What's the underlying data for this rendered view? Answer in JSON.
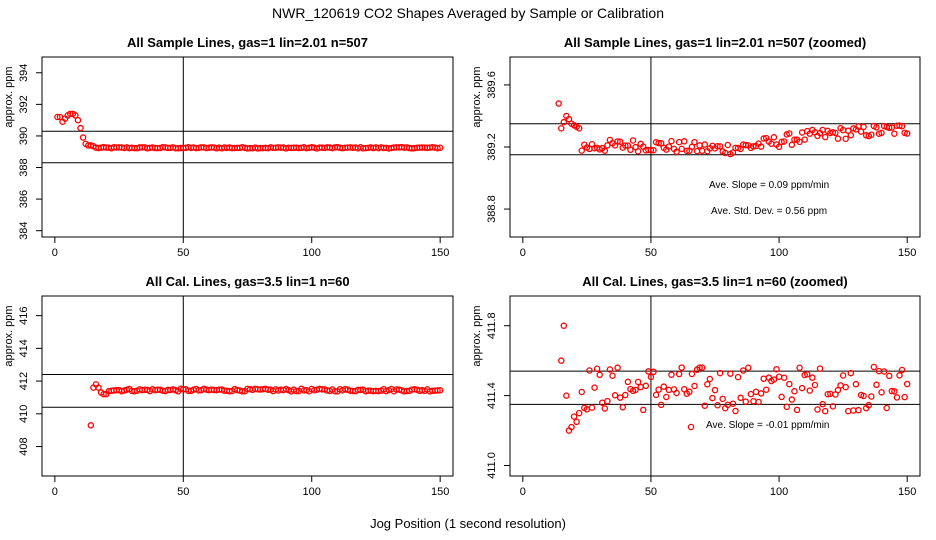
{
  "figure": {
    "title": "NWR_120619  CO2 Shapes Averaged by Sample or Calibration",
    "xlabel": "Jog Position (1 second resolution)"
  },
  "chart_data": [
    {
      "type": "scatter",
      "title": "All Sample Lines, gas=1 lin=2.01 n=507",
      "ylabel": "approx. ppm",
      "xlim": [
        -5,
        155
      ],
      "ylim": [
        383.6,
        395
      ],
      "xticks": [
        0,
        50,
        100,
        150
      ],
      "yticks": [
        384,
        386,
        388,
        390,
        392,
        394
      ],
      "vline_x": 50,
      "hlines_y": [
        388.3,
        390.3
      ],
      "color": "#ff0000",
      "annotations": [],
      "segments": [
        {
          "x": [
            1,
            2,
            3,
            4,
            5,
            6,
            7,
            8,
            9,
            10,
            11,
            12,
            13,
            14,
            15
          ],
          "y": [
            391.2,
            391.2,
            390.9,
            391.1,
            391.3,
            391.4,
            391.4,
            391.3,
            391.0,
            390.5,
            389.9,
            389.5,
            389.4,
            389.4,
            389.35
          ]
        },
        {
          "x_start": 16,
          "x_end": 150,
          "step": 1,
          "y_base": 389.25,
          "y_slope": 0.0,
          "jitter": 0.04
        }
      ]
    },
    {
      "type": "scatter",
      "title": "All Sample Lines, gas=1 lin=2.01 n=507 (zoomed)",
      "ylabel": "approx. ppm",
      "xlim": [
        -5,
        155
      ],
      "ylim": [
        388.62,
        389.78
      ],
      "xticks": [
        0,
        50,
        100,
        150
      ],
      "yticks": [
        388.8,
        389.2,
        389.6
      ],
      "vline_x": 50,
      "hlines_y": [
        389.35,
        389.15
      ],
      "color": "#ff0000",
      "annotations": [
        "Ave. Slope =  0.09  ppm/min",
        "Ave. Std. Dev. =  0.56  ppm"
      ],
      "segments": [
        {
          "x": [
            14,
            15,
            16,
            17,
            18,
            19,
            20,
            21,
            22
          ],
          "y": [
            389.48,
            389.32,
            389.36,
            389.4,
            389.38,
            389.35,
            389.34,
            389.33,
            389.32
          ]
        },
        {
          "x_start": 23,
          "x_end": 150,
          "step": 1,
          "y_base": 389.2,
          "y_slope": 0.0009,
          "jitter": 0.04,
          "dip_center": 80,
          "dip_depth": 0.06
        }
      ]
    },
    {
      "type": "scatter",
      "title": "All Cal. Lines, gas=3.5 lin=1 n=60",
      "ylabel": "approx. ppm",
      "xlim": [
        -5,
        155
      ],
      "ylim": [
        406.2,
        417.2
      ],
      "xticks": [
        0,
        50,
        100,
        150
      ],
      "yticks": [
        408,
        410,
        412,
        414,
        416
      ],
      "vline_x": 50,
      "hlines_y": [
        412.4,
        410.4
      ],
      "color": "#ff0000",
      "annotations": [],
      "segments": [
        {
          "x": [
            14,
            15,
            16,
            17,
            18,
            19,
            20
          ],
          "y": [
            409.3,
            411.6,
            411.8,
            411.6,
            411.3,
            411.2,
            411.2
          ]
        },
        {
          "x_start": 21,
          "x_end": 150,
          "step": 1,
          "y_base": 411.45,
          "y_slope": 0.0,
          "jitter": 0.08
        }
      ]
    },
    {
      "type": "scatter",
      "title": "All Cal. Lines, gas=3.5 lin=1 n=60 (zoomed)",
      "ylabel": "approx. ppm",
      "xlim": [
        -5,
        155
      ],
      "ylim": [
        410.94,
        411.97
      ],
      "xticks": [
        0,
        50,
        100,
        150
      ],
      "yticks": [
        411.0,
        411.4,
        411.8
      ],
      "vline_x": 50,
      "hlines_y": [
        411.54,
        411.35
      ],
      "color": "#ff0000",
      "annotations": [
        "Ave. Slope =  -0.01  ppm/min"
      ],
      "segments": [
        {
          "x": [
            15,
            16,
            17,
            18,
            19,
            20,
            21,
            22
          ],
          "y": [
            411.6,
            411.8,
            411.4,
            411.2,
            411.22,
            411.28,
            411.25,
            411.3
          ]
        },
        {
          "x_start": 23,
          "x_end": 150,
          "step": 1,
          "y_base": 411.44,
          "y_slope": 0.0,
          "jitter": 0.13
        }
      ]
    }
  ]
}
